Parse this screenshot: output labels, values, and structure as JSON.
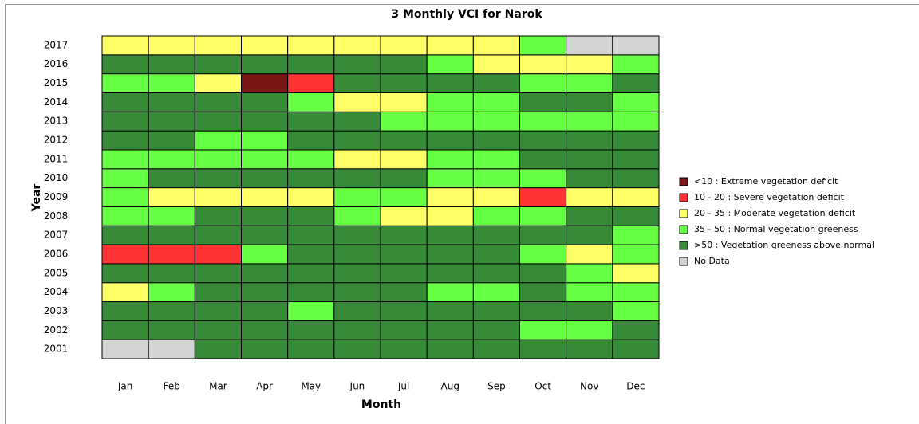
{
  "chart_data": {
    "type": "heatmap",
    "title": "3 Monthly VCI for Narok",
    "xlabel": "Month",
    "ylabel": "Year",
    "categories": [
      "Jan",
      "Feb",
      "Mar",
      "Apr",
      "May",
      "Jun",
      "Jul",
      "Aug",
      "Sep",
      "Oct",
      "Nov",
      "Dec"
    ],
    "years": [
      2001,
      2002,
      2003,
      2004,
      2005,
      2006,
      2007,
      2008,
      2009,
      2010,
      2011,
      2012,
      2013,
      2014,
      2015,
      2016,
      2017
    ],
    "legend": [
      {
        "label": "<10 : Extreme vegetation deficit",
        "color": "#7a1818"
      },
      {
        "label": "10 - 20 : Severe vegetation deficit",
        "color": "#ff3333"
      },
      {
        "label": "20 - 35 : Moderate vegetation deficit",
        "color": "#ffff66"
      },
      {
        "label": "35 - 50 : Normal vegetation greeness",
        "color": "#66ff44"
      },
      {
        "label": ">50 : Vegetation greeness above normal",
        "color": "#378a37"
      },
      {
        "label": "No Data",
        "color": "#d4d4d4"
      }
    ],
    "values": [
      [
        5,
        5,
        4,
        4,
        4,
        4,
        4,
        4,
        4,
        4,
        4,
        4
      ],
      [
        4,
        4,
        4,
        4,
        4,
        4,
        4,
        4,
        4,
        3,
        3,
        4
      ],
      [
        4,
        4,
        4,
        4,
        3,
        4,
        4,
        4,
        4,
        4,
        4,
        3
      ],
      [
        2,
        3,
        4,
        4,
        4,
        4,
        4,
        3,
        3,
        4,
        3,
        3
      ],
      [
        4,
        4,
        4,
        4,
        4,
        4,
        4,
        4,
        4,
        4,
        3,
        2
      ],
      [
        1,
        1,
        1,
        3,
        4,
        4,
        4,
        4,
        4,
        3,
        2,
        3
      ],
      [
        4,
        4,
        4,
        4,
        4,
        4,
        4,
        4,
        4,
        4,
        4,
        3
      ],
      [
        3,
        3,
        4,
        4,
        4,
        3,
        2,
        2,
        3,
        3,
        4,
        4
      ],
      [
        3,
        2,
        2,
        2,
        2,
        3,
        3,
        2,
        2,
        1,
        2,
        2
      ],
      [
        3,
        4,
        4,
        4,
        4,
        4,
        4,
        3,
        3,
        3,
        4,
        4
      ],
      [
        3,
        3,
        3,
        3,
        3,
        2,
        2,
        3,
        3,
        4,
        4,
        4
      ],
      [
        4,
        4,
        3,
        3,
        4,
        4,
        4,
        4,
        4,
        4,
        4,
        4
      ],
      [
        4,
        4,
        4,
        4,
        4,
        4,
        3,
        3,
        3,
        3,
        3,
        3
      ],
      [
        4,
        4,
        4,
        4,
        3,
        2,
        2,
        3,
        3,
        4,
        4,
        3
      ],
      [
        3,
        3,
        2,
        0,
        1,
        4,
        4,
        4,
        4,
        3,
        3,
        4
      ],
      [
        4,
        4,
        4,
        4,
        4,
        4,
        4,
        3,
        2,
        2,
        2,
        3
      ],
      [
        2,
        2,
        2,
        2,
        2,
        2,
        2,
        2,
        2,
        3,
        5,
        5
      ]
    ]
  }
}
